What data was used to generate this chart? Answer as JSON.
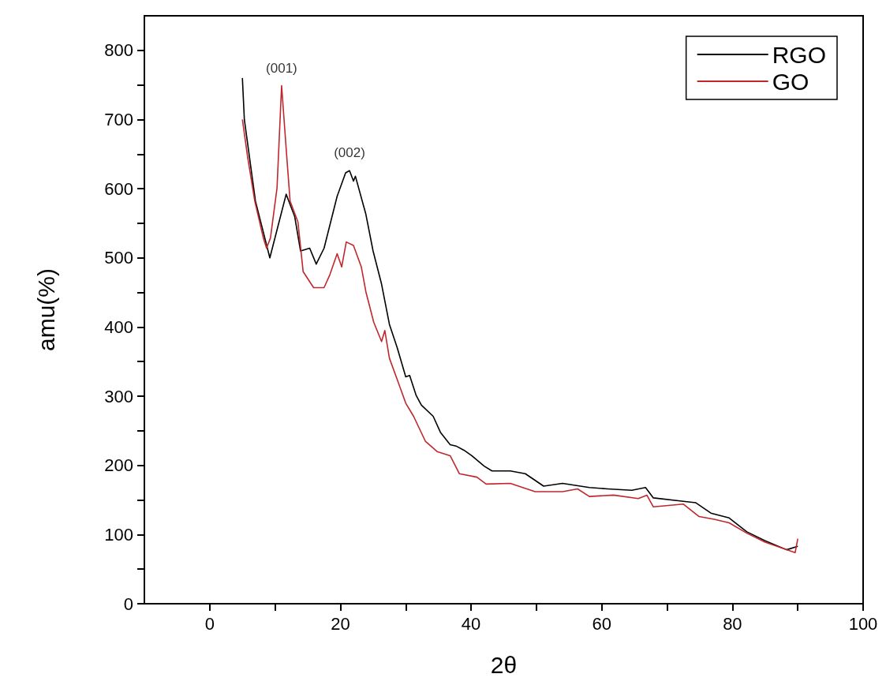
{
  "chart_data": {
    "type": "line",
    "xlabel": "2θ",
    "ylabel": "amu(%)",
    "xlim": [
      -10,
      100
    ],
    "ylim": [
      0,
      850
    ],
    "xticks": [
      0,
      {
        "value": 10,
        "label": null
      },
      20,
      {
        "value": 30,
        "label": null
      },
      40,
      {
        "value": 50,
        "label": null
      },
      60,
      {
        "value": 70,
        "label": null
      },
      80,
      {
        "value": 90,
        "label": null
      },
      100
    ],
    "yticks": [
      0,
      {
        "value": 50,
        "label": null
      },
      100,
      {
        "value": 150,
        "label": null
      },
      200,
      {
        "value": 250,
        "label": null
      },
      300,
      {
        "value": 350,
        "label": null
      },
      400,
      {
        "value": 450,
        "label": null
      },
      500,
      {
        "value": 550,
        "label": null
      },
      600,
      {
        "value": 650,
        "label": null
      },
      700,
      {
        "value": 750,
        "label": null
      },
      800
    ],
    "grid": false,
    "legend": "top right",
    "marker": "none",
    "line_style": "solid",
    "annotations": [
      {
        "text": "(001)",
        "x": 11,
        "y": 749
      },
      {
        "text": "(002)",
        "x": 21.4,
        "y": 626
      }
    ],
    "series": [
      {
        "name": "RGO",
        "color": "#000000",
        "x": [
          5,
          5.3,
          7,
          9.2,
          11.7,
          13,
          13.9,
          15.3,
          16.3,
          17.5,
          19.5,
          20.8,
          21.4,
          22,
          22.3,
          23.9,
          25,
          26.3,
          27.5,
          28.7,
          30,
          30.6,
          31.6,
          32.4,
          34.2,
          35.3,
          36.8,
          37.7,
          38.9,
          40.1,
          42,
          43.2,
          46,
          48.3,
          51.1,
          54,
          58.1,
          60.9,
          64.6,
          66.7,
          67.9,
          72.5,
          74.4,
          76.7,
          79.5,
          82.2,
          85,
          88.3,
          90
        ],
        "values": [
          760,
          700,
          582,
          500,
          592,
          560,
          510,
          514,
          491,
          514,
          589,
          623,
          626,
          611,
          618,
          563,
          510,
          462,
          404,
          370,
          328,
          330,
          301,
          287,
          271,
          248,
          230,
          228,
          222,
          214,
          199,
          192,
          192,
          188,
          170,
          174,
          168,
          166,
          164,
          168,
          153,
          148,
          146,
          131,
          124,
          104,
          91,
          78,
          83
        ]
      },
      {
        "name": "GO",
        "color": "#c0272d",
        "x": [
          5,
          5.8,
          6.9,
          8.2,
          8.7,
          9.3,
          10.3,
          11,
          11.7,
          12.3,
          13.5,
          14.3,
          15.9,
          17.5,
          18.4,
          19.5,
          20.2,
          20.9,
          22,
          23.2,
          23.9,
          25.1,
          26.3,
          26.8,
          27.5,
          28.7,
          30,
          31.2,
          33,
          34.8,
          36.8,
          38.2,
          40.9,
          42.3,
          46,
          49.8,
          54,
          56.3,
          58.1,
          61.8,
          65.6,
          66.9,
          67.9,
          72.5,
          74.9,
          77.2,
          79.5,
          82.2,
          85,
          89.6,
          90
        ],
        "values": [
          700,
          646,
          582,
          529,
          514,
          529,
          601,
          749,
          658,
          582,
          552,
          480,
          457,
          457,
          476,
          506,
          487,
          523,
          518,
          487,
          451,
          407,
          379,
          395,
          355,
          324,
          290,
          271,
          235,
          220,
          214,
          188,
          183,
          173,
          174,
          162,
          162,
          166,
          155,
          157,
          152,
          157,
          140,
          144,
          126,
          122,
          117,
          102,
          89,
          74,
          94
        ]
      }
    ]
  }
}
